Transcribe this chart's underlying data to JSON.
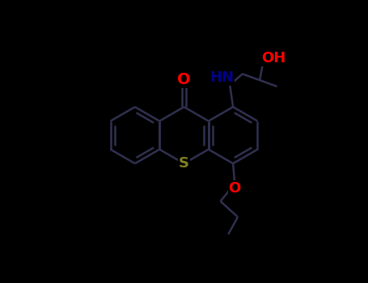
{
  "background": "#000000",
  "bond_color": "#1a1a2e",
  "bond_color_visible": "#2d2d4e",
  "atom_colors": {
    "O": "#ff0000",
    "N": "#00008b",
    "S": "#808020",
    "C": "#000000",
    "H": "#000000"
  },
  "font_size_atom": 11,
  "font_size_label": 13
}
